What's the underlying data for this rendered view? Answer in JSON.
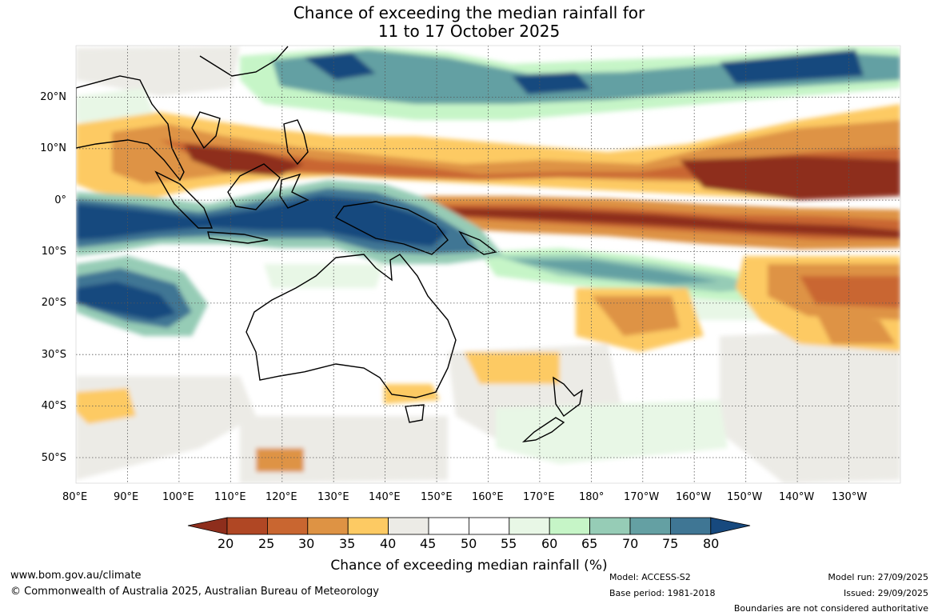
{
  "title": {
    "line1": "Chance of exceeding the median rainfall for",
    "line2": "11 to 17 October 2025"
  },
  "map": {
    "lat_ticks": [
      "20°N",
      "10°N",
      "0°",
      "10°S",
      "20°S",
      "30°S",
      "40°S",
      "50°S"
    ],
    "lon_ticks": [
      "80°E",
      "90°E",
      "100°E",
      "110°E",
      "120°E",
      "130°E",
      "140°E",
      "150°E",
      "160°E",
      "170°E",
      "180°",
      "170°W",
      "160°W",
      "150°W",
      "140°W",
      "130°W"
    ],
    "extent": {
      "lon_min": 80,
      "lon_max": 240,
      "lat_min": -55,
      "lat_max": 30
    }
  },
  "legend": {
    "ticks": [
      "20",
      "25",
      "30",
      "35",
      "40",
      "45",
      "50",
      "55",
      "60",
      "65",
      "70",
      "75",
      "80"
    ],
    "colors": [
      "#8e2e1c",
      "#b04724",
      "#c96630",
      "#de9344",
      "#fdca63",
      "#ecebe6",
      "#ffffff",
      "#ffffff",
      "#e8f7e6",
      "#c6f5c7",
      "#96ccb6",
      "#64a0a3",
      "#3f7694",
      "#17497e"
    ],
    "label": "Chance of exceeding median rainfall (%)"
  },
  "footer": {
    "website": "www.bom.gov.au/climate",
    "copyright": "© Commonwealth of Australia 2025, Australian Bureau of Meteorology",
    "model": "Model: ACCESS-S2",
    "base_period": "Base period: 1981-2018",
    "model_run": "Model run: 27/09/2025",
    "issued": "Issued: 29/09/2025",
    "boundaries": "Boundaries are not considered authoritative"
  }
}
